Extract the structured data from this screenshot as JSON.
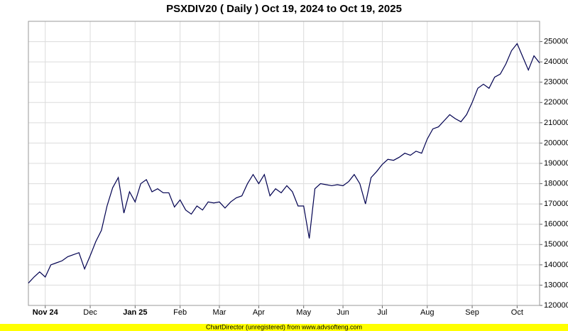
{
  "chart_data": {
    "type": "line",
    "title": "PSXDIV20 ( Daily ) Oct 19, 2024 to Oct 19, 2025",
    "categories": [
      null,
      null,
      null,
      "Nov 24",
      null,
      null,
      null,
      null,
      null,
      null,
      null,
      "Dec",
      null,
      null,
      null,
      null,
      null,
      null,
      null,
      "Jan 25",
      null,
      null,
      null,
      null,
      null,
      null,
      null,
      "Feb",
      null,
      null,
      null,
      null,
      null,
      null,
      "Mar",
      null,
      null,
      null,
      null,
      null,
      null,
      "Apr",
      null,
      null,
      null,
      null,
      null,
      null,
      null,
      "May",
      null,
      null,
      null,
      null,
      null,
      null,
      "Jun",
      null,
      null,
      null,
      null,
      null,
      null,
      "Jul",
      null,
      null,
      null,
      null,
      null,
      null,
      null,
      "Aug",
      null,
      null,
      null,
      null,
      null,
      null,
      null,
      "Sep",
      null,
      null,
      null,
      null,
      null,
      null,
      null,
      "Oct",
      null,
      null,
      null,
      null
    ],
    "series": [
      {
        "name": "PSXDIV20",
        "color": "#000050",
        "values": [
          131000,
          134000,
          136500,
          134000,
          140000,
          141000,
          142000,
          144000,
          145000,
          146000,
          138000,
          144500,
          151500,
          157000,
          169000,
          178000,
          183000,
          165500,
          176000,
          171000,
          180000,
          182000,
          176000,
          177500,
          175500,
          175500,
          168500,
          172000,
          167000,
          165000,
          169000,
          167000,
          171000,
          170500,
          171000,
          168000,
          171000,
          173000,
          174000,
          180000,
          184500,
          180000,
          184500,
          174000,
          177500,
          175500,
          179000,
          176000,
          169000,
          169000,
          153000,
          177500,
          180000,
          179500,
          179000,
          179500,
          179000,
          181000,
          184500,
          180000,
          170000,
          183000,
          186000,
          189500,
          192000,
          191500,
          193000,
          195000,
          194000,
          196000,
          195000,
          202000,
          207000,
          208000,
          211000,
          214000,
          212000,
          210500,
          214000,
          220000,
          227000,
          229000,
          227000,
          232500,
          234000,
          239000,
          245500,
          249000,
          242500,
          236000,
          243000,
          239500
        ]
      }
    ],
    "ylim": [
      120000,
      260000
    ],
    "yticks": [
      120000,
      130000,
      140000,
      150000,
      160000,
      170000,
      180000,
      190000,
      200000,
      210000,
      220000,
      230000,
      240000,
      250000
    ],
    "grid": true
  },
  "footer": "ChartDirector (unregistered) from www.advsofteng.com"
}
